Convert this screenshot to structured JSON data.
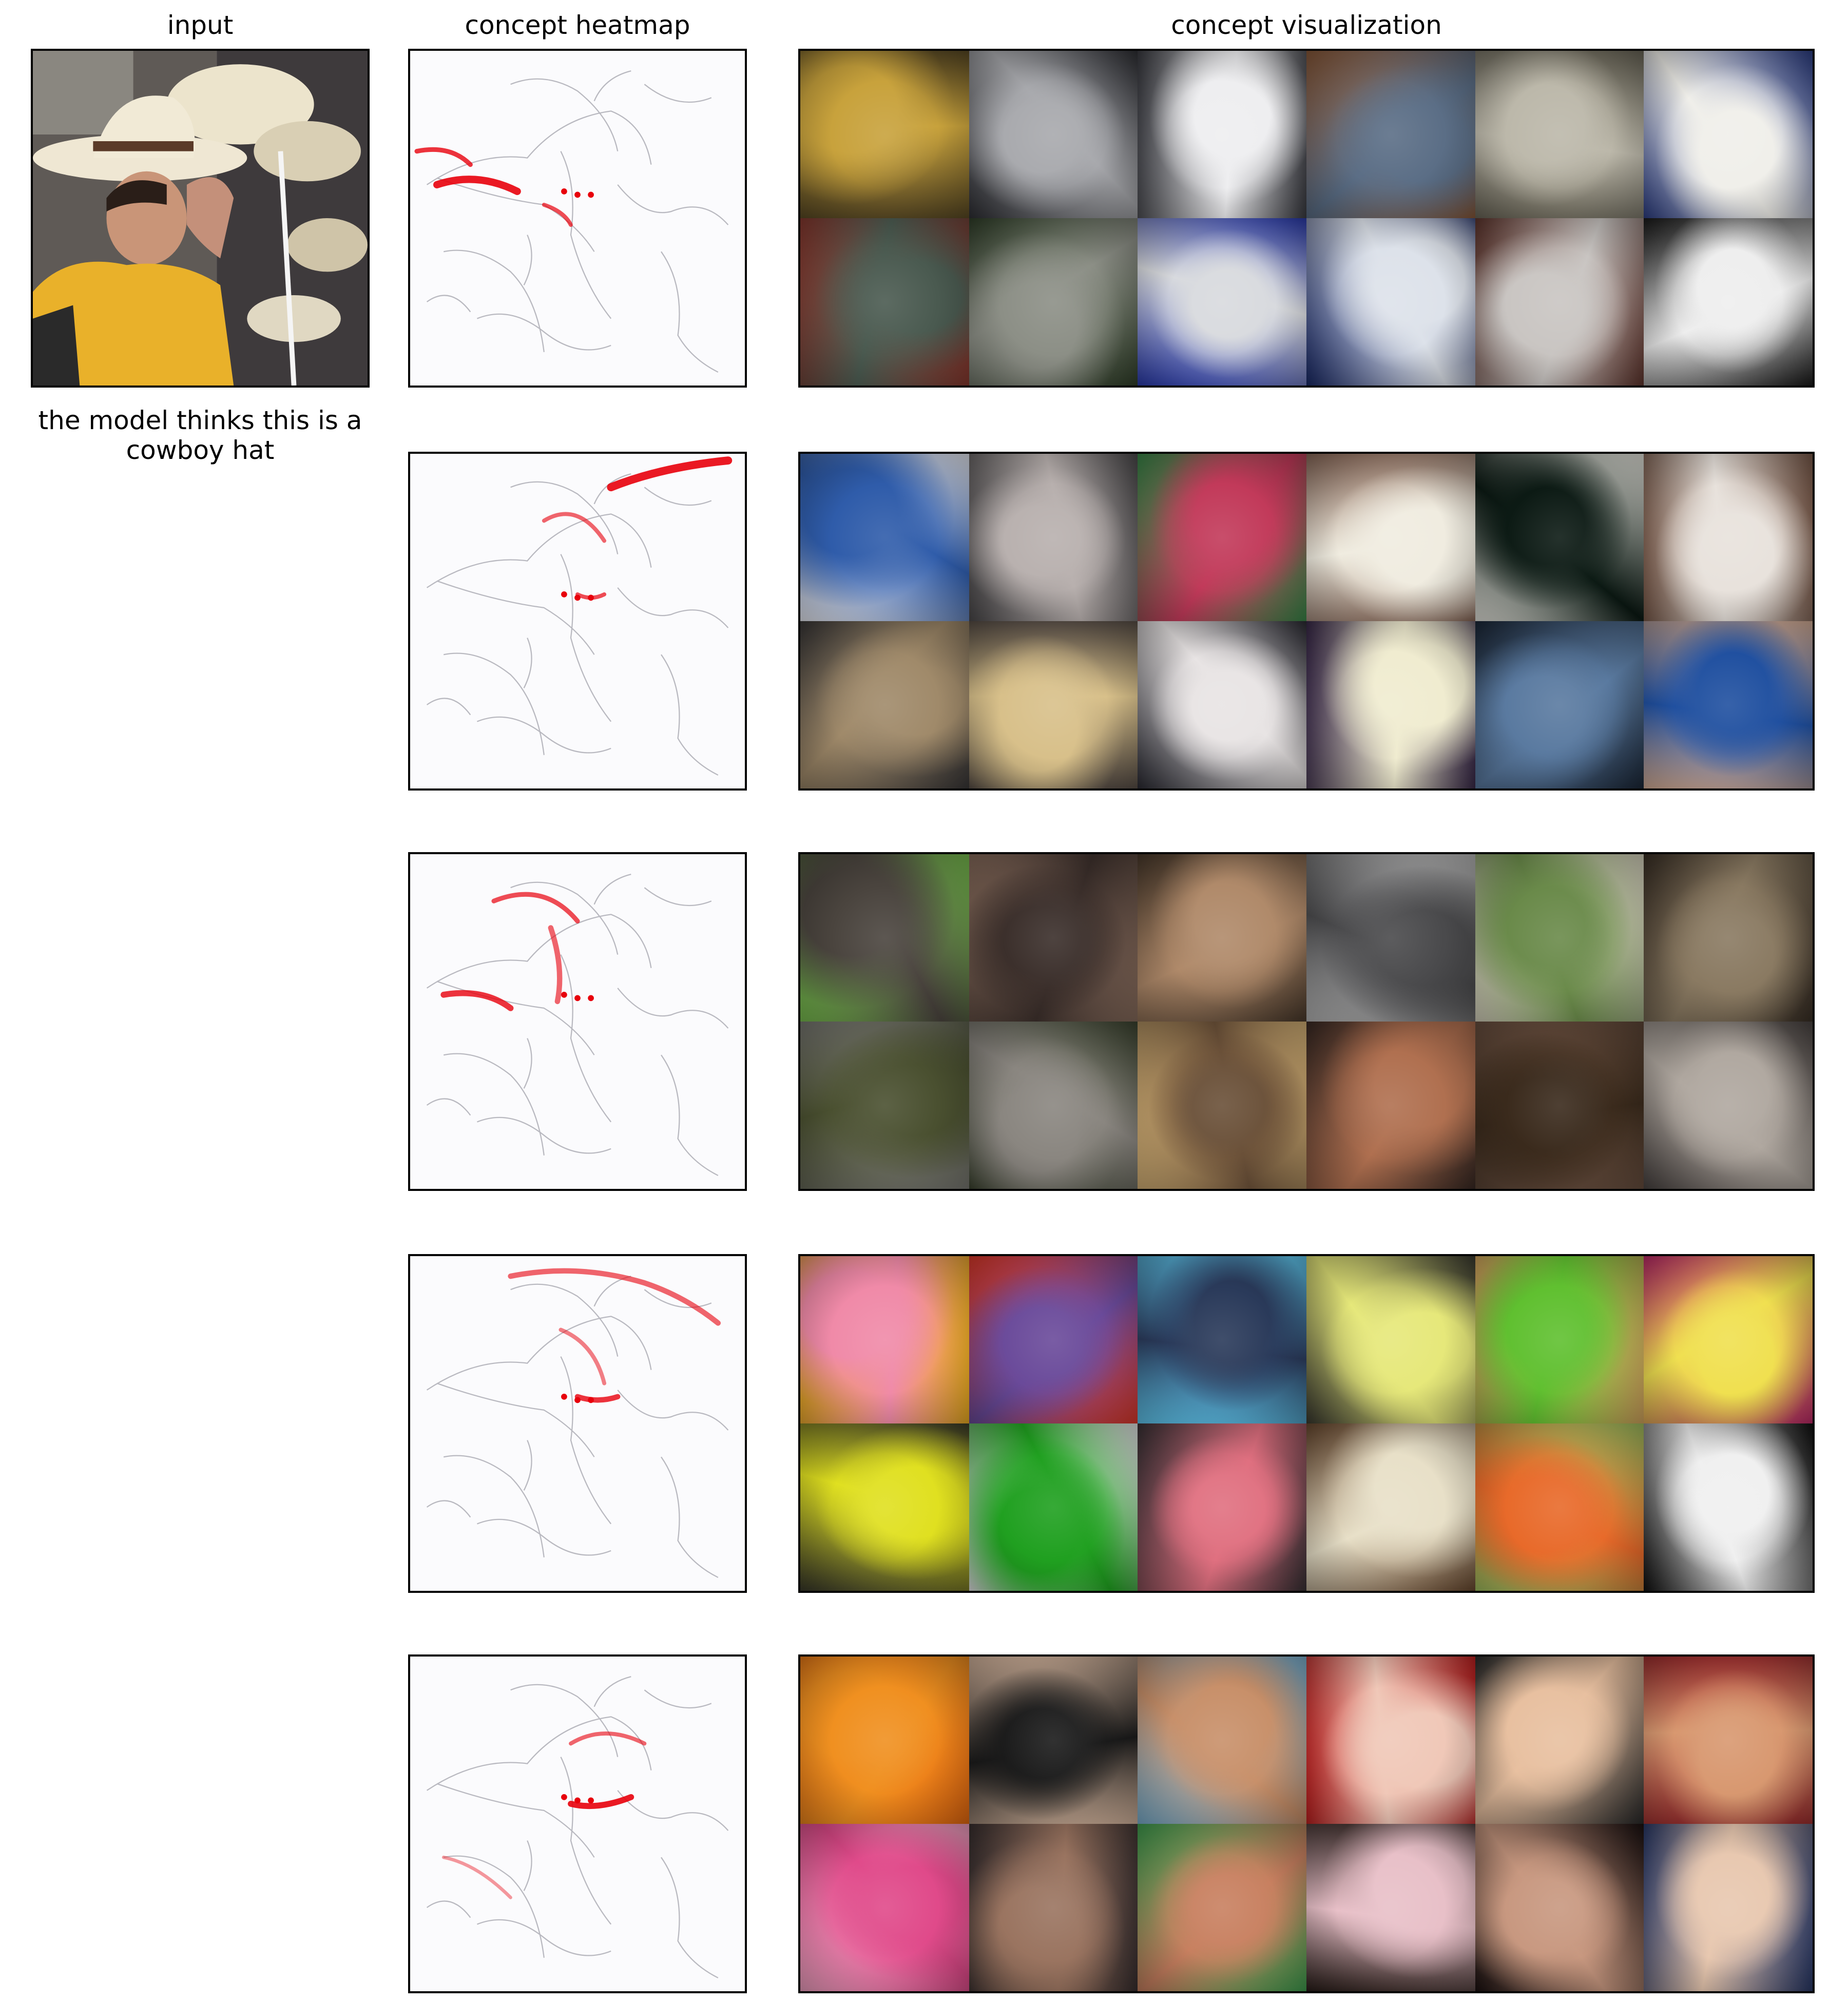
{
  "titles": {
    "input": "input",
    "heatmap": "concept heatmap",
    "visualization": "concept visualization"
  },
  "prediction": {
    "line1": "the model thinks this is a",
    "line2": "cowboy hat"
  },
  "input_image": {
    "subject": "man in yellow shirt trying on a cowboy hat among hats",
    "palette": [
      "#e8b22c",
      "#e9e2d0",
      "#3b2a22",
      "#7d7c80"
    ]
  },
  "heatmap_color": "#e8000b",
  "concepts": [
    {
      "tiles": [
        [
          "#c8a23c",
          "#5a4a24"
        ],
        [
          "#a8a9ad",
          "#2f3035"
        ],
        [
          "#eeeef0",
          "#3b3c42"
        ],
        [
          "#5b6e86",
          "#8a5a3a"
        ],
        [
          "#bcb8aa",
          "#6a6658"
        ],
        [
          "#f0efea",
          "#2d3f86"
        ],
        [
          "#4a5a50",
          "#8a3a30"
        ],
        [
          "#8c8f86",
          "#31402a"
        ],
        [
          "#d8dade",
          "#2b3cae"
        ],
        [
          "#dde2ea",
          "#1a2a68"
        ],
        [
          "#c9c5c2",
          "#60362e"
        ],
        [
          "#eeeeee",
          "#1a1a1a"
        ]
      ]
    },
    {
      "tiles": [
        [
          "#2f5caa",
          "#e8eaf2"
        ],
        [
          "#b8b0ae",
          "#4c4a4c"
        ],
        [
          "#c23a5a",
          "#3a8a4a"
        ],
        [
          "#f0ece0",
          "#8a6a5a"
        ],
        [
          "#0c1a14",
          "#e8e8e0"
        ],
        [
          "#e8e2dc",
          "#7a5a4a"
        ],
        [
          "#a08a6a",
          "#3a3838"
        ],
        [
          "#d8c08a",
          "#5a5048"
        ],
        [
          "#e8e4e4",
          "#2c2c34"
        ],
        [
          "#f0ecd0",
          "#3a2a4a"
        ],
        [
          "#5a7aa0",
          "#1c2838"
        ],
        [
          "#2050a0",
          "#d8b098"
        ]
      ]
    },
    {
      "tiles": [
        [
          "#4a443e",
          "#7ac050"
        ],
        [
          "#3a2e2a",
          "#8a6e5e"
        ],
        [
          "#b08a6a",
          "#4a3a2c"
        ],
        [
          "#4a4a4c",
          "#b8b8b8"
        ],
        [
          "#6a8a4a",
          "#d8d4c0"
        ],
        [
          "#8a7a62",
          "#3a3026"
        ],
        [
          "#4a5030",
          "#7a7a74"
        ],
        [
          "#8a8680",
          "#3c4430"
        ],
        [
          "#6a5038",
          "#d8b478"
        ],
        [
          "#b07050",
          "#3a2a24"
        ],
        [
          "#3a2a1c",
          "#6a5040"
        ],
        [
          "#b0a8a0",
          "#4a4442"
        ]
      ]
    },
    {
      "tiles": [
        [
          "#f08aa8",
          "#f0b020"
        ],
        [
          "#6a4a9a",
          "#e03a2a"
        ],
        [
          "#2a3a5a",
          "#60c8f0"
        ],
        [
          "#e6e87a",
          "#3a3a30"
        ],
        [
          "#60c030",
          "#d8a860"
        ],
        [
          "#f0e050",
          "#c02a6a"
        ],
        [
          "#e0e020",
          "#3a3a2a"
        ],
        [
          "#20a020",
          "#e8e8ea"
        ],
        [
          "#e07080",
          "#3a3236"
        ],
        [
          "#e8e0c8",
          "#6a4a30"
        ],
        [
          "#e86a2a",
          "#a0c060"
        ],
        [
          "#f0f0f0",
          "#101010"
        ]
      ]
    },
    {
      "tiles": [
        [
          "#f09020",
          "#e86a10"
        ],
        [
          "#1a1a1a",
          "#d8b8a0"
        ],
        [
          "#c8906a",
          "#7ab0d0"
        ],
        [
          "#f0c8b8",
          "#c02020"
        ],
        [
          "#e8c0a0",
          "#2a2a2a"
        ],
        [
          "#d89870",
          "#a03030"
        ],
        [
          "#e04a8a",
          "#f0a0c0"
        ],
        [
          "#9a7460",
          "#3a3030"
        ],
        [
          "#c88060",
          "#40a050"
        ],
        [
          "#e8c0c8",
          "#2a1e1a"
        ],
        [
          "#c89880",
          "#1a1010"
        ],
        [
          "#e8c8b0",
          "#2a3a6a"
        ]
      ]
    }
  ]
}
